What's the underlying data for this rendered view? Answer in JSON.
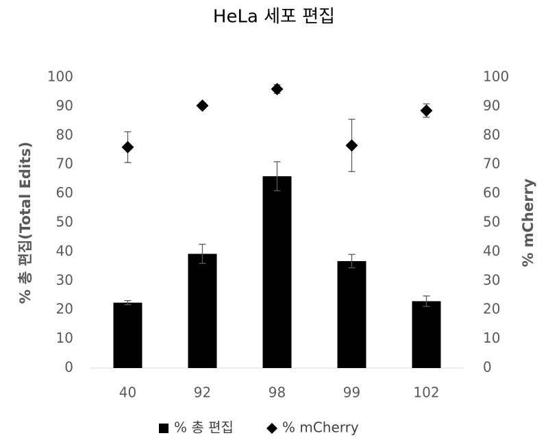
{
  "chart_data": {
    "type": "bar",
    "title": "HeLa 세포 편집",
    "y_label": "% 총 편집(Total Edits)",
    "y2_label": "% mCherry",
    "categories": [
      "40",
      "92",
      "98",
      "99",
      "102"
    ],
    "series": [
      {
        "name": "% 총 편집",
        "type": "bar",
        "color": "#000000",
        "values": [
          22.5,
          39.3,
          66,
          36.8,
          23
        ],
        "errors": [
          0.7,
          3.3,
          5,
          2.3,
          1.8
        ]
      },
      {
        "name": "% mCherry",
        "type": "scatter",
        "axis": "y2",
        "color": "#000000",
        "values": [
          76,
          90.3,
          96,
          76.6,
          88.6
        ],
        "errors": [
          5.3,
          1,
          1.5,
          9,
          2.3
        ]
      }
    ],
    "ylim": [
      0,
      100
    ],
    "yticks": [
      0,
      10,
      20,
      30,
      40,
      50,
      60,
      70,
      80,
      90,
      100
    ],
    "y2lim": [
      0,
      100
    ],
    "y2ticks": [
      0,
      10,
      20,
      30,
      40,
      50,
      60,
      70,
      80,
      90,
      100
    ],
    "legend": "bottom"
  }
}
